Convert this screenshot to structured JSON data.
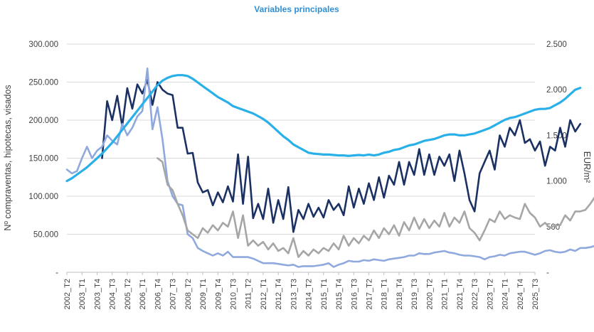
{
  "chart_data": {
    "type": "line",
    "title": "",
    "subtitle": "Variables principales",
    "ylabel": "Nº compraventas, hipotecas, visados",
    "y2label": "EUR/m²",
    "ylim": [
      0,
      300000
    ],
    "y2lim": [
      0,
      2500
    ],
    "y_ticks": [
      "-",
      "50.000",
      "100.000",
      "150.000",
      "200.000",
      "250.000",
      "300.000"
    ],
    "y2_ticks": [
      "-",
      "500",
      "1.000",
      "1.500",
      "2.000",
      "2.500"
    ],
    "x_ticks": [
      "2002_T2",
      "2003_T1",
      "2003_T4",
      "2004_T3",
      "2005_T2",
      "2006_T1",
      "2006_T4",
      "2007_T3",
      "2008_T2",
      "2009_T1",
      "2009_T4",
      "2010_T3",
      "2011_T2",
      "2012_T1",
      "2012_T4",
      "2013_T3",
      "2014_T2",
      "2015_T1",
      "2015_T4",
      "2016_T3",
      "2017_T2",
      "2018_T1",
      "2018_T4",
      "2019_T3",
      "2020_T2",
      "2021_T1",
      "2021_T4",
      "2022_T3",
      "2023_T2",
      "2024_T1",
      "2024_T4",
      "2025_T3"
    ],
    "x_start": "2002_T2",
    "grid": true,
    "series": [
      {
        "axis": "left",
        "color": "#1b3163",
        "start": "2004_T1",
        "values": [
          150000,
          225000,
          200000,
          232000,
          192000,
          242000,
          215000,
          247000,
          235000,
          253000,
          220000,
          250000,
          240000,
          235000,
          233000,
          190000,
          190000,
          156000,
          157000,
          118000,
          105000,
          108000,
          88000,
          105000,
          92000,
          113000,
          93000,
          155000,
          90000,
          152000,
          71000,
          90000,
          70000,
          110000,
          65000,
          95000,
          70000,
          112000,
          53000,
          82000,
          70000,
          90000,
          73000,
          85000,
          72000,
          95000,
          82000,
          90000,
          75000,
          113000,
          85000,
          110000,
          90000,
          117000,
          95000,
          125000,
          98000,
          127000,
          115000,
          145000,
          115000,
          145000,
          128000,
          162000,
          128000,
          155000,
          128000,
          152000,
          140000,
          155000,
          120000,
          160000,
          130000,
          95000,
          80000,
          130000,
          145000,
          160000,
          135000,
          180000,
          165000,
          190000,
          180000,
          200000,
          170000,
          175000,
          160000,
          172000,
          140000,
          165000,
          160000,
          190000,
          165000,
          200000,
          185000,
          195000
        ]
      },
      {
        "axis": "left",
        "color": "#8fa9de",
        "start": "2002_T2",
        "values": [
          135000,
          130000,
          133000,
          150000,
          165000,
          150000,
          160000,
          165000,
          180000,
          173000,
          168000,
          195000,
          180000,
          190000,
          205000,
          212000,
          268000,
          188000,
          217000,
          175000,
          120000,
          100000,
          90000,
          88000,
          50000,
          45000,
          32000,
          28000,
          25000,
          22000,
          25000,
          22000,
          27000,
          20000,
          20000,
          20000,
          20000,
          18000,
          15000,
          12000,
          12000,
          12000,
          11000,
          10000,
          9000,
          10000,
          7000,
          8000,
          8000,
          8000,
          9000,
          10000,
          12000,
          7000,
          10000,
          12000,
          15000,
          14000,
          14000,
          16000,
          15000,
          17000,
          16000,
          15000,
          17000,
          18000,
          19000,
          20000,
          22000,
          22000,
          25000,
          24000,
          24000,
          26000,
          27000,
          28000,
          26000,
          25000,
          23000,
          22000,
          22000,
          21000,
          20000,
          17000,
          20000,
          21000,
          23000,
          22000,
          25000,
          26000,
          27000,
          27000,
          25000,
          23000,
          25000,
          28000,
          29000,
          27000,
          26000,
          27000,
          30000,
          28000,
          32000,
          32000,
          33000,
          35000
        ]
      },
      {
        "axis": "left",
        "color": "#a6a6a6",
        "start": "2006_T4",
        "values": [
          150000,
          145000,
          115000,
          108000,
          90000,
          75000,
          55000,
          50000,
          45000,
          58000,
          52000,
          62000,
          55000,
          65000,
          60000,
          80000,
          45000,
          75000,
          35000,
          42000,
          35000,
          40000,
          30000,
          38000,
          28000,
          32000,
          25000,
          45000,
          20000,
          28000,
          22000,
          30000,
          25000,
          32000,
          28000,
          38000,
          30000,
          48000,
          35000,
          45000,
          38000,
          48000,
          42000,
          55000,
          45000,
          58000,
          50000,
          62000,
          48000,
          66000,
          55000,
          72000,
          57000,
          70000,
          58000,
          68000,
          60000,
          78000,
          60000,
          72000,
          65000,
          80000,
          58000,
          52000,
          42000,
          55000,
          70000,
          66000,
          80000,
          70000,
          75000,
          72000,
          70000,
          90000,
          78000,
          72000,
          60000,
          65000,
          58000,
          62000,
          62000,
          75000,
          68000,
          80000,
          80000,
          82000,
          90000,
          100000
        ]
      },
      {
        "axis": "right",
        "color": "#2ab0e8",
        "start": "2002_T2",
        "values": [
          1000,
          1030,
          1070,
          1110,
          1150,
          1200,
          1250,
          1300,
          1360,
          1420,
          1490,
          1560,
          1630,
          1700,
          1770,
          1840,
          1910,
          1980,
          2050,
          2100,
          2130,
          2150,
          2160,
          2160,
          2150,
          2120,
          2080,
          2040,
          2000,
          1960,
          1920,
          1890,
          1860,
          1820,
          1800,
          1780,
          1760,
          1740,
          1710,
          1680,
          1640,
          1590,
          1540,
          1490,
          1450,
          1400,
          1370,
          1340,
          1310,
          1300,
          1295,
          1290,
          1290,
          1285,
          1280,
          1280,
          1275,
          1280,
          1285,
          1280,
          1290,
          1280,
          1290,
          1310,
          1320,
          1340,
          1350,
          1370,
          1390,
          1400,
          1420,
          1440,
          1450,
          1460,
          1480,
          1500,
          1510,
          1510,
          1500,
          1500,
          1510,
          1520,
          1540,
          1560,
          1580,
          1610,
          1640,
          1670,
          1690,
          1700,
          1720,
          1740,
          1760,
          1780,
          1790,
          1790,
          1800,
          1830,
          1860,
          1900,
          1950,
          2000,
          2020
        ]
      }
    ]
  }
}
